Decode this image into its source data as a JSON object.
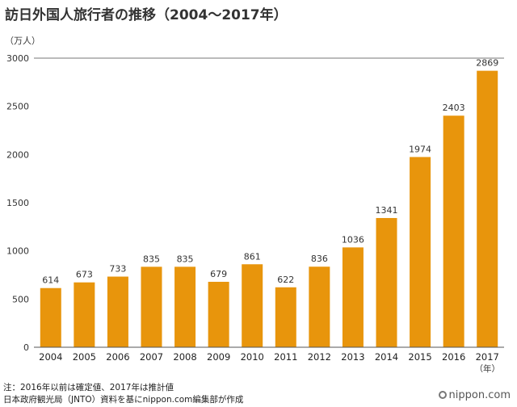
{
  "title": "訪日外国人旅行者の推移（2004～2017年）",
  "footnotes": [
    "注：2016年以前は確定値、2017年は推計値",
    "日本政府観光局（JNTO）資料を基にnippon.com編集部が作成"
  ],
  "brand": "nippon.com",
  "colors": {
    "bar": "#E8950C",
    "grid": "#cccccc",
    "axis": "#555555"
  },
  "chart_data": {
    "type": "bar",
    "title": "訪日外国人旅行者の推移（2004～2017年）",
    "ylabel": "（万人）",
    "xlabel": "（年）",
    "ylim": [
      0,
      3000
    ],
    "yticks": [
      0,
      500,
      1000,
      1500,
      2000,
      2500,
      3000
    ],
    "grid": false,
    "categories": [
      "2004",
      "2005",
      "2006",
      "2007",
      "2008",
      "2009",
      "2010",
      "2011",
      "2012",
      "2013",
      "2014",
      "2015",
      "2016",
      "2017"
    ],
    "values": [
      614,
      673,
      733,
      835,
      835,
      679,
      861,
      622,
      836,
      1036,
      1341,
      1974,
      2403,
      2869
    ]
  }
}
